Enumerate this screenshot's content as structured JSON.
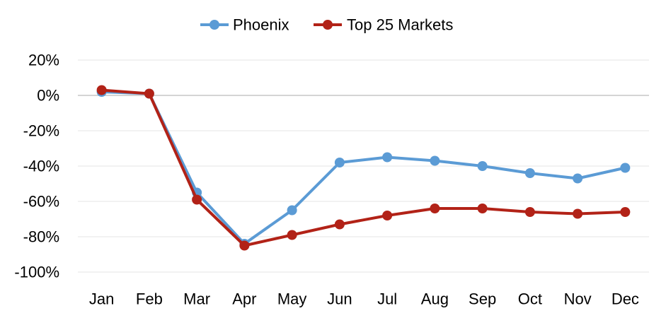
{
  "chart_data": {
    "type": "line",
    "categories": [
      "Jan",
      "Feb",
      "Mar",
      "Apr",
      "May",
      "Jun",
      "Jul",
      "Aug",
      "Sep",
      "Oct",
      "Nov",
      "Dec"
    ],
    "series": [
      {
        "name": "Phoenix",
        "color": "#5B9BD5",
        "values": [
          2,
          1,
          -55,
          -84,
          -65,
          -38,
          -35,
          -37,
          -40,
          -44,
          -47,
          -41
        ]
      },
      {
        "name": "Top 25 Markets",
        "color": "#B22217",
        "values": [
          3,
          1,
          -59,
          -85,
          -79,
          -73,
          -68,
          -64,
          -64,
          -66,
          -67,
          -66
        ]
      }
    ],
    "yticks": [
      "20%",
      "0%",
      "-20%",
      "-40%",
      "-60%",
      "-80%",
      "-100%"
    ],
    "ylim": [
      -100,
      20
    ],
    "grid": true,
    "legend_position": "top-center"
  }
}
